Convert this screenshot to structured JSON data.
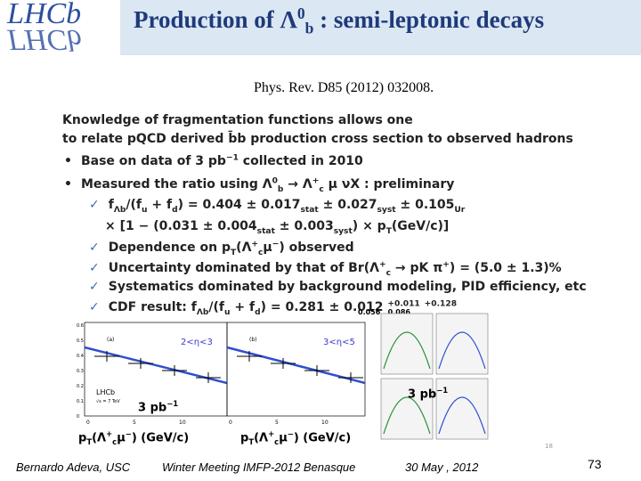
{
  "header": {
    "logo": [
      "LHCb",
      "ΓHCb"
    ],
    "title": [
      "Production of Λ",
      {
        "sup": "0"
      },
      {
        "sub": "b"
      },
      " : semi-leptonic decays"
    ]
  },
  "reference": "Phys. Rev. D85 (2012)  032008.",
  "body": {
    "lines": [
      {
        "marker": "",
        "parts": [
          "Knowledge of fragmentation functions allows one"
        ]
      },
      {
        "marker": "",
        "parts": [
          "to relate pQCD derived ",
          "b̄b",
          " production cross section to observed hadrons"
        ]
      },
      {
        "marker": "•",
        "parts": [
          "Base on data of  3 pb",
          {
            "sup": "−1"
          },
          " collected in 2010"
        ]
      },
      {
        "marker": "•",
        "parts": [
          "Measured the ratio using Λ",
          {
            "sup": "0"
          },
          {
            "sub": "b"
          },
          " → Λ",
          {
            "sup": "+"
          },
          {
            "sub": "c"
          },
          " μ   νX : preliminary"
        ]
      },
      {
        "marker": "✓",
        "parts": [
          "f",
          {
            "sub": "Λb"
          },
          "/(f",
          {
            "sub": "u"
          },
          " + f",
          {
            "sub": "d"
          },
          ") = 0.404 ± 0.017",
          {
            "sub": "stat"
          },
          " ± 0.027",
          {
            "sub": "syst"
          },
          " ± 0.105",
          {
            "sub": "Ur"
          }
        ]
      },
      {
        "marker": "",
        "parts": [
          "× [1 − (0.031 ± 0.004",
          {
            "sub": "stat"
          },
          " ± 0.003",
          {
            "sub": "syst"
          },
          ") × p",
          {
            "sub": "T"
          },
          "(GeV/c)]"
        ]
      },
      {
        "marker": "✓",
        "parts": [
          "Dependence on p",
          {
            "sub": "T"
          },
          "(Λ",
          {
            "sup": "+"
          },
          {
            "sub": "c"
          },
          "μ",
          {
            "sup": "−"
          },
          ")  observed"
        ]
      },
      {
        "marker": "✓",
        "parts": [
          "Uncertainty dominated by that of Br(Λ",
          {
            "sup": "+"
          },
          {
            "sub": "c"
          },
          " → pK   π",
          {
            "sup": "+"
          },
          ") = (5.0 ± 1.3)%"
        ]
      },
      {
        "marker": "✓",
        "parts": [
          "Systematics dominated by background modeling, PID efficiency, etc"
        ]
      },
      {
        "marker": "✓",
        "parts": [
          "CDF result: f",
          {
            "sub": "Λb"
          },
          "/(f",
          {
            "sub": "u"
          },
          " + f",
          {
            "sub": "d"
          },
          ") = 0.281 ± 0.012 ",
          {
            "sup": "+0.011"
          },
          " ",
          {
            "sup": "+0.128"
          }
        ]
      }
    ]
  },
  "cdf_lower": [
    "0.056",
    "0.086"
  ],
  "figures": {
    "left_panels": [
      {
        "label": "(a)",
        "eta": "2<η<3"
      },
      {
        "label": "(b)",
        "eta": "3<η<5"
      }
    ],
    "y_ticks": [
      "0.6",
      "0.5",
      "0.4",
      "0.3",
      "0.2",
      "0.1",
      "0"
    ],
    "x_ticks": [
      "0",
      "5",
      "10"
    ],
    "experiment": "LHCb",
    "energy": "√s = 7 TeV",
    "luminosity": [
      "3 pb",
      {
        "sup": "−1"
      }
    ],
    "luminosity_right": [
      "3 pb",
      {
        "sup": "−1"
      }
    ],
    "x_titles": [
      [
        "p",
        {
          "sub": "T"
        },
        "(Λ",
        {
          "sup": "+"
        },
        {
          "sub": "c"
        },
        "μ",
        {
          "sup": "−"
        },
        ")   (GeV/c)"
      ],
      [
        "p",
        {
          "sub": "T"
        },
        "(Λ",
        {
          "sup": "+"
        },
        {
          "sub": "c"
        },
        "μ",
        {
          "sup": "−"
        },
        ")   (GeV/c)"
      ]
    ],
    "page_number": "18"
  },
  "footer": {
    "author": "Bernardo Adeva, USC",
    "event": "Winter Meeting IMFP-2012  Benasque",
    "date": "30 May , 2012",
    "slide_number": "73"
  }
}
